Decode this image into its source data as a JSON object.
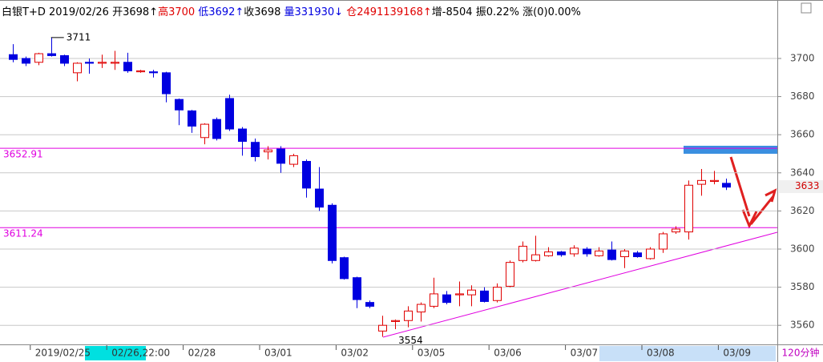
{
  "header": {
    "items": [
      "白银T+D",
      "2019/02/26",
      "开3698↑",
      "高3700",
      "低3692↑",
      "收3698",
      "量331930↓",
      "仓2491139168↑",
      "增-8504",
      "振0.22%",
      "涨(0)0.00%"
    ]
  },
  "chart_data": {
    "type": "candlestick",
    "categories": [
      null,
      null,
      "2019/02/25",
      null,
      null,
      null,
      null,
      null,
      "02/26,22:00",
      null,
      null,
      null,
      null,
      null,
      "02/28",
      null,
      null,
      null,
      null,
      null,
      "03/01",
      null,
      null,
      null,
      null,
      null,
      "03/02",
      null,
      null,
      null,
      null,
      null,
      "03/05",
      null,
      null,
      null,
      null,
      null,
      "03/06",
      null,
      null,
      null,
      null,
      null,
      "03/07",
      null,
      null,
      null,
      null,
      null,
      "03/08",
      null,
      null,
      null,
      null,
      null,
      "03/09"
    ],
    "open": [
      3702,
      3700,
      3698,
      3702.5,
      3701.5,
      3692.5,
      3698,
      3697.5,
      3697.5,
      3698,
      3693,
      3693,
      3692.5,
      3678.5,
      3672.5,
      3658.5,
      3668,
      3679,
      3663,
      3656,
      3651,
      3652.5,
      3644.5,
      3646,
      3631.5,
      3623,
      3595.5,
      3585,
      3572,
      3557,
      3562,
      3562.5,
      3567,
      3570,
      3576,
      3576,
      3576,
      3578,
      3573,
      3580.5,
      3594,
      3594,
      3596.5,
      3598.5,
      3597.5,
      3600,
      3596.5,
      3599.5,
      3596,
      3598,
      3595,
      3600,
      3609,
      3609,
      3634,
      3635.5,
      3634.5
    ],
    "high": [
      3707.5,
      3701,
      3703,
      3711,
      3702,
      3698,
      3700,
      3702,
      3704,
      3703,
      3694,
      3694,
      3693,
      3679,
      3673,
      3666,
      3669,
      3681,
      3664,
      3658,
      3654,
      3654,
      3650,
      3647,
      3643,
      3624,
      3596,
      3585.5,
      3573,
      3565,
      3563,
      3570,
      3572,
      3585,
      3578,
      3583,
      3581,
      3580,
      3582,
      3594,
      3604,
      3607,
      3601,
      3599,
      3602,
      3601,
      3601,
      3604,
      3600,
      3599,
      3601,
      3609,
      3612,
      3636,
      3642,
      3641,
      3637
    ],
    "low": [
      3698,
      3696,
      3696.5,
      3701,
      3696,
      3688,
      3692,
      3695,
      3694,
      3692.5,
      3692.5,
      3690,
      3677,
      3665,
      3661,
      3655,
      3657,
      3662,
      3649,
      3646,
      3647,
      3640,
      3643,
      3627,
      3620,
      3592.5,
      3584,
      3569,
      3569,
      3554,
      3558,
      3559,
      3562,
      3569,
      3571,
      3570,
      3570,
      3572,
      3572,
      3580,
      3593,
      3593.5,
      3596,
      3596,
      3596,
      3596,
      3596,
      3594,
      3590,
      3595.5,
      3594.5,
      3598,
      3608,
      3605,
      3628,
      3634,
      3631
    ],
    "close": [
      3699.5,
      3697.5,
      3702.5,
      3701.5,
      3697.5,
      3697.5,
      3697.5,
      3698,
      3698,
      3693.5,
      3693.5,
      3692.5,
      3681.5,
      3673,
      3664.5,
      3665.5,
      3658,
      3663,
      3656.5,
      3648.5,
      3652,
      3645,
      3649,
      3632,
      3622,
      3594,
      3584.5,
      3573.5,
      3570,
      3560,
      3562.5,
      3567.5,
      3571,
      3576.5,
      3572,
      3576.5,
      3578.5,
      3572.5,
      3580,
      3593,
      3601.5,
      3597,
      3598.5,
      3597,
      3600.5,
      3597.5,
      3599,
      3594.5,
      3599,
      3596,
      3600,
      3608,
      3610.5,
      3633.5,
      3636,
      3636,
      3632.5
    ],
    "up_color": "#e00000",
    "down_color": "#0000e0",
    "ylim": [
      3550,
      3720
    ],
    "yticks": [
      3560,
      3580,
      3600,
      3620,
      3640,
      3660,
      3680,
      3700
    ],
    "grid": true,
    "hlines": [
      3652.91,
      3611.24
    ],
    "hline_color": "#e000e0",
    "high_mark": 3711,
    "low_mark": 3554,
    "last_price": 3633,
    "period": "120分钟"
  }
}
